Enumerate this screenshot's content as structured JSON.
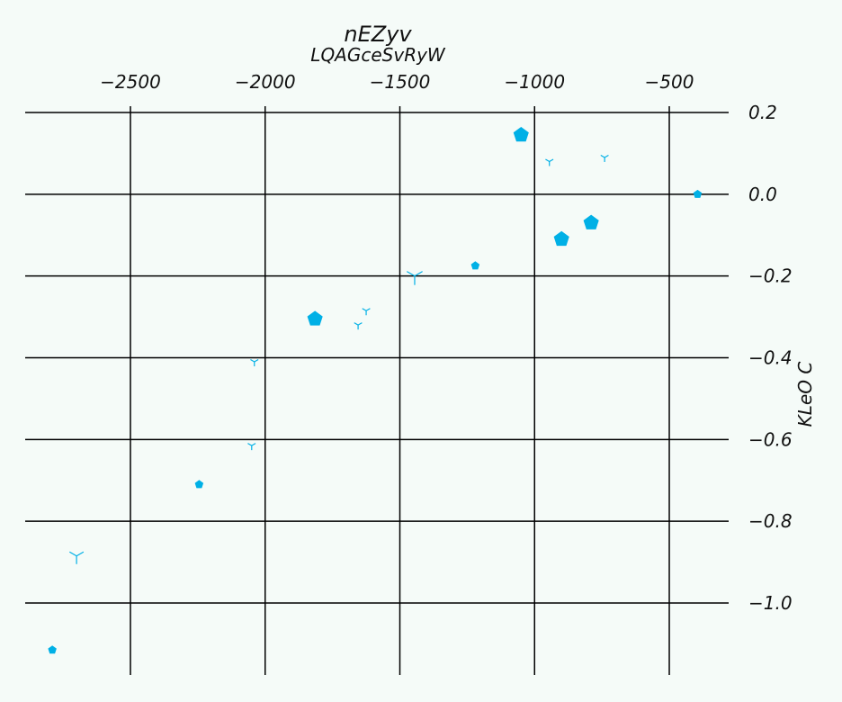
{
  "chart_data": {
    "type": "scatter",
    "title": "nEZyv",
    "subtitle": "LQAGceSvRyW",
    "xlabel": "",
    "ylabel": "KLeO C",
    "x_axis_position": "top",
    "y_axis_position": "right",
    "xlim": [
      -2890,
      -500
    ],
    "ylim": [
      -1.17,
      0.2
    ],
    "x_ticks": [
      -2500,
      -2000,
      -1500,
      -1000,
      -500
    ],
    "y_ticks": [
      0.2,
      0.0,
      -0.2,
      -0.4,
      -0.6,
      -0.8,
      -1.0
    ],
    "x_tick_labels": [
      "−2500",
      "−2000",
      "−1500",
      "−1000",
      "−500"
    ],
    "y_tick_labels": [
      "0.2",
      "0.0",
      "−0.2",
      "−0.4",
      "−0.6",
      "−0.8",
      "−1.0"
    ],
    "grid": true,
    "marker_color": "#00b0e6",
    "background_color": "#f5fbf8",
    "series": [
      {
        "marker": "pentagon",
        "points": [
          {
            "x": -1050,
            "y": 0.145,
            "size": 9
          },
          {
            "x": -395,
            "y": 0.0,
            "size": 5
          },
          {
            "x": -790,
            "y": -0.07,
            "size": 9
          },
          {
            "x": -900,
            "y": -0.11,
            "size": 9
          },
          {
            "x": -1220,
            "y": -0.175,
            "size": 5
          },
          {
            "x": -1815,
            "y": -0.305,
            "size": 9
          },
          {
            "x": -2245,
            "y": -0.71,
            "size": 5
          },
          {
            "x": -2790,
            "y": -1.115,
            "size": 5
          }
        ]
      },
      {
        "marker": "tri-down",
        "points": [
          {
            "x": -945,
            "y": 0.08,
            "size": 5
          },
          {
            "x": -740,
            "y": 0.09,
            "size": 5
          },
          {
            "x": -1445,
            "y": -0.2,
            "size": 10
          },
          {
            "x": -1625,
            "y": -0.285,
            "size": 5
          },
          {
            "x": -1655,
            "y": -0.32,
            "size": 5
          },
          {
            "x": -2040,
            "y": -0.41,
            "size": 5
          },
          {
            "x": -2050,
            "y": -0.615,
            "size": 5
          },
          {
            "x": -2700,
            "y": -0.885,
            "size": 9
          }
        ]
      }
    ]
  }
}
